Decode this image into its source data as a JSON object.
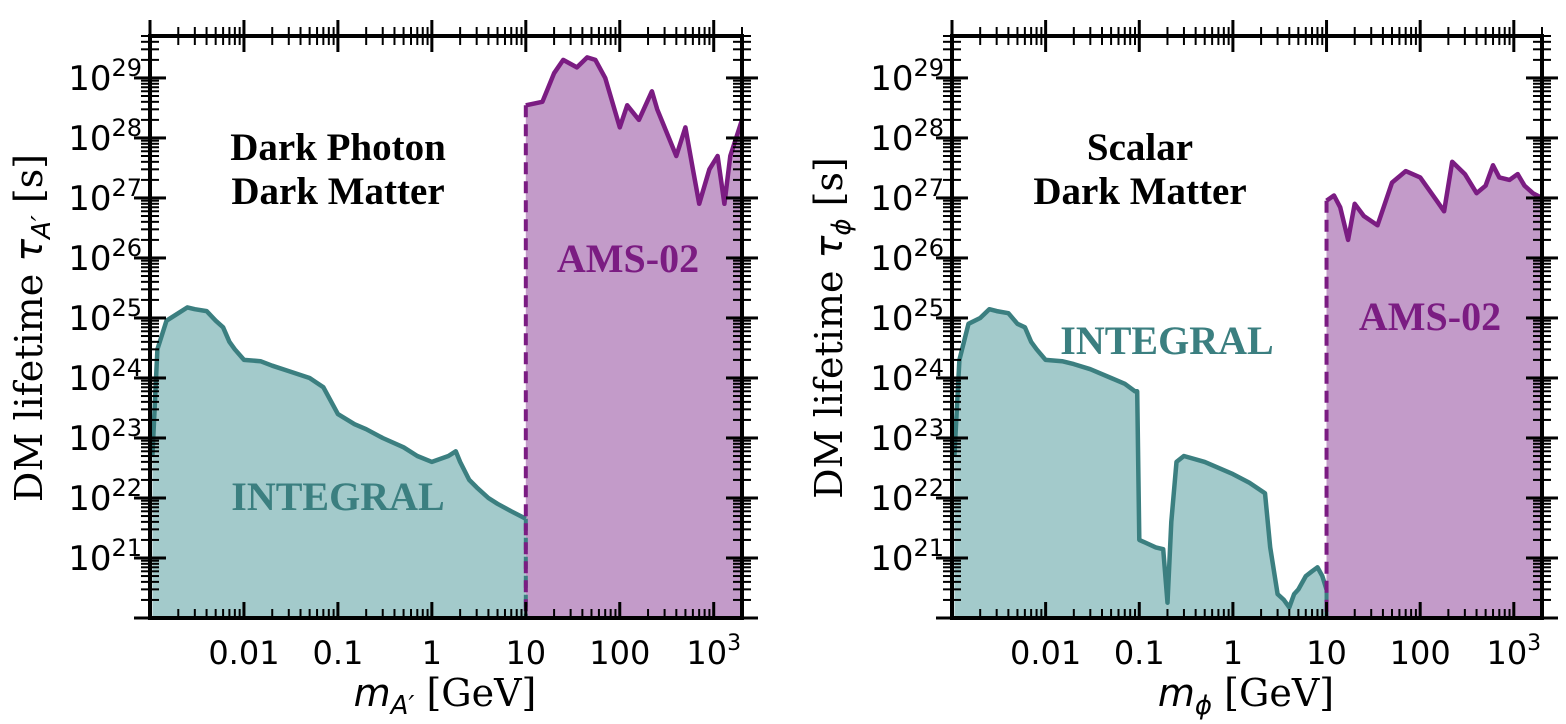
{
  "colors": {
    "integral_line": "#3b7f80",
    "integral_fill": "#a3cacb",
    "ams_line": "#7b1c82",
    "ams_fill": "#c39bc9",
    "axes": "#000000"
  },
  "chart_data": [
    {
      "type": "area",
      "title_lines": [
        "Dark Photon",
        "Dark Matter"
      ],
      "xlabel_math": "m",
      "xlabel_sub": "A′",
      "xlabel_unit": " [GeV]",
      "ylabel_text": "DM lifetime ",
      "ylabel_math": "τ",
      "ylabel_sub": "A′",
      "ylabel_unit": " [s]",
      "x_scale": "log",
      "y_scale": "log",
      "xlim": [
        0.001,
        2000
      ],
      "ylim": [
        1e+20,
        5e+29
      ],
      "x_ticks": [
        {
          "value": 0.01,
          "label": "0.01"
        },
        {
          "value": 0.1,
          "label": "0.1"
        },
        {
          "value": 1,
          "label": "1"
        },
        {
          "value": 10,
          "label": "10"
        },
        {
          "value": 100,
          "label": "100"
        },
        {
          "value": 1000,
          "label_base": "10",
          "label_exp": "3"
        }
      ],
      "y_ticks": [
        {
          "value": 1e+21,
          "label_base": "10",
          "label_exp": "21"
        },
        {
          "value": 1e+22,
          "label_base": "10",
          "label_exp": "22"
        },
        {
          "value": 1e+23,
          "label_base": "10",
          "label_exp": "23"
        },
        {
          "value": 1e+24,
          "label_base": "10",
          "label_exp": "24"
        },
        {
          "value": 1e+25,
          "label_base": "10",
          "label_exp": "25"
        },
        {
          "value": 1e+26,
          "label_base": "10",
          "label_exp": "26"
        },
        {
          "value": 1e+27,
          "label_base": "10",
          "label_exp": "27"
        },
        {
          "value": 1e+28,
          "label_base": "10",
          "label_exp": "28"
        },
        {
          "value": 1e+29,
          "label_base": "10",
          "label_exp": "29"
        }
      ],
      "series": [
        {
          "name": "INTEGRAL",
          "color_key": "integral",
          "x": [
            0.00106,
            0.0012,
            0.0015,
            0.002,
            0.0025,
            0.003,
            0.004,
            0.005,
            0.006,
            0.007,
            0.008,
            0.01,
            0.015,
            0.02,
            0.03,
            0.05,
            0.07,
            0.1,
            0.15,
            0.2,
            0.3,
            0.5,
            0.7,
            1.0,
            1.5,
            1.8,
            2.0,
            2.5,
            3.0,
            4.0,
            5.0,
            7.0,
            10.0
          ],
          "y": [
            5e+22,
            3e+24,
            9e+24,
            1.2e+25,
            1.5e+25,
            1.4e+25,
            1.3e+25,
            9e+24,
            7e+24,
            4e+24,
            3e+24,
            2e+24,
            1.9e+24,
            1.6e+24,
            1.3e+24,
            1e+24,
            7e+23,
            2.5e+23,
            1.7e+23,
            1.4e+23,
            1e+23,
            7e+22,
            5e+22,
            4e+22,
            5e+22,
            6e+22,
            4e+22,
            2e+22,
            1.5e+22,
            1e+22,
            8e+21,
            6e+21,
            4.5e+21
          ]
        },
        {
          "name": "AMS-02",
          "color_key": "ams",
          "x": [
            10,
            15,
            20,
            25,
            35,
            45,
            55,
            70,
            100,
            120,
            160,
            220,
            250,
            300,
            400,
            500,
            600,
            700,
            900,
            1100,
            1300,
            1500,
            2000
          ],
          "y": [
            3.5e+28,
            4e+28,
            1.2e+29,
            2e+29,
            1.5e+29,
            2.2e+29,
            2e+29,
            1e+29,
            1.5e+28,
            3.5e+28,
            2e+28,
            6e+28,
            3e+28,
            1.5e+28,
            5e+27,
            1.5e+28,
            3e+27,
            8e+26,
            3e+27,
            5e+27,
            8e+26,
            5e+27,
            2e+28
          ]
        }
      ],
      "annotations": [
        {
          "text": "INTEGRAL",
          "color_key": "integral",
          "x": 0.02,
          "y": 2e+22
        },
        {
          "text": "AMS-02",
          "color_key": "ams",
          "x": 120,
          "y": 1e+26
        }
      ],
      "grid": false,
      "legend": "none"
    },
    {
      "type": "area",
      "title_lines": [
        "Scalar",
        "Dark Matter"
      ],
      "xlabel_math": "m",
      "xlabel_sub": "ϕ",
      "xlabel_unit": " [GeV]",
      "ylabel_text": "DM lifetime ",
      "ylabel_math": "τ",
      "ylabel_sub": "ϕ",
      "ylabel_unit": " [s]",
      "x_scale": "log",
      "y_scale": "log",
      "xlim": [
        0.001,
        2000
      ],
      "ylim": [
        1e+20,
        5e+29
      ],
      "x_ticks": [
        {
          "value": 0.01,
          "label": "0.01"
        },
        {
          "value": 0.1,
          "label": "0.1"
        },
        {
          "value": 1,
          "label": "1"
        },
        {
          "value": 10,
          "label": "10"
        },
        {
          "value": 100,
          "label": "100"
        },
        {
          "value": 1000,
          "label_base": "10",
          "label_exp": "3"
        }
      ],
      "y_ticks": [
        {
          "value": 1e+21,
          "label_base": "10",
          "label_exp": "21"
        },
        {
          "value": 1e+22,
          "label_base": "10",
          "label_exp": "22"
        },
        {
          "value": 1e+23,
          "label_base": "10",
          "label_exp": "23"
        },
        {
          "value": 1e+24,
          "label_base": "10",
          "label_exp": "24"
        },
        {
          "value": 1e+25,
          "label_base": "10",
          "label_exp": "25"
        },
        {
          "value": 1e+26,
          "label_base": "10",
          "label_exp": "26"
        },
        {
          "value": 1e+27,
          "label_base": "10",
          "label_exp": "27"
        },
        {
          "value": 1e+28,
          "label_base": "10",
          "label_exp": "28"
        },
        {
          "value": 1e+29,
          "label_base": "10",
          "label_exp": "29"
        }
      ],
      "series": [
        {
          "name": "INTEGRAL",
          "color_key": "integral",
          "x": [
            0.00106,
            0.0012,
            0.0015,
            0.002,
            0.0025,
            0.003,
            0.004,
            0.005,
            0.006,
            0.007,
            0.008,
            0.01,
            0.015,
            0.02,
            0.03,
            0.05,
            0.07,
            0.09,
            0.095,
            0.1,
            0.15,
            0.18,
            0.2,
            0.22,
            0.25,
            0.3,
            0.5,
            1.0,
            1.5,
            2.2,
            2.5,
            3.0,
            3.5,
            4.0,
            4.5,
            5.0,
            6.0,
            7.0,
            8.0,
            9.0,
            10.0
          ],
          "y": [
            5e+22,
            2e+24,
            8e+24,
            1e+25,
            1.4e+25,
            1.3e+25,
            1.2e+25,
            8e+24,
            7e+24,
            4e+24,
            3e+24,
            2e+24,
            1.9e+24,
            1.7e+24,
            1.4e+24,
            1e+24,
            8e+23,
            6e+23,
            6e+23,
            2e+21,
            1.5e+21,
            1.4e+21,
            1.8e+20,
            4e+21,
            4e+22,
            5e+22,
            4e+22,
            2.5e+22,
            1.8e+22,
            1.2e+22,
            1.5e+21,
            2.5e+20,
            2e+20,
            1.5e+20,
            2.5e+20,
            3e+20,
            5e+20,
            6e+20,
            7e+20,
            5e+20,
            3e+20
          ]
        },
        {
          "name": "AMS-02",
          "color_key": "ams",
          "x": [
            10,
            12,
            14,
            17,
            20,
            25,
            35,
            50,
            70,
            100,
            150,
            180,
            220,
            300,
            400,
            500,
            600,
            700,
            900,
            1100,
            1300,
            1600,
            2000
          ],
          "y": [
            9e+26,
            1.1e+27,
            7e+26,
            2e+26,
            8e+26,
            5e+26,
            3.5e+26,
            1.8e+27,
            2.8e+27,
            2.2e+27,
            9e+26,
            6e+26,
            4e+27,
            2.5e+27,
            1.2e+27,
            1.6e+27,
            3.5e+27,
            2.2e+27,
            2e+27,
            2.5e+27,
            1.6e+27,
            1.2e+27,
            1e+27
          ]
        }
      ],
      "annotations": [
        {
          "text": "INTEGRAL",
          "color_key": "integral",
          "x": 0.3,
          "y": 5e+24
        },
        {
          "text": "AMS-02",
          "color_key": "ams",
          "x": 120,
          "y": 1e+25
        }
      ],
      "grid": false,
      "legend": "none"
    }
  ]
}
